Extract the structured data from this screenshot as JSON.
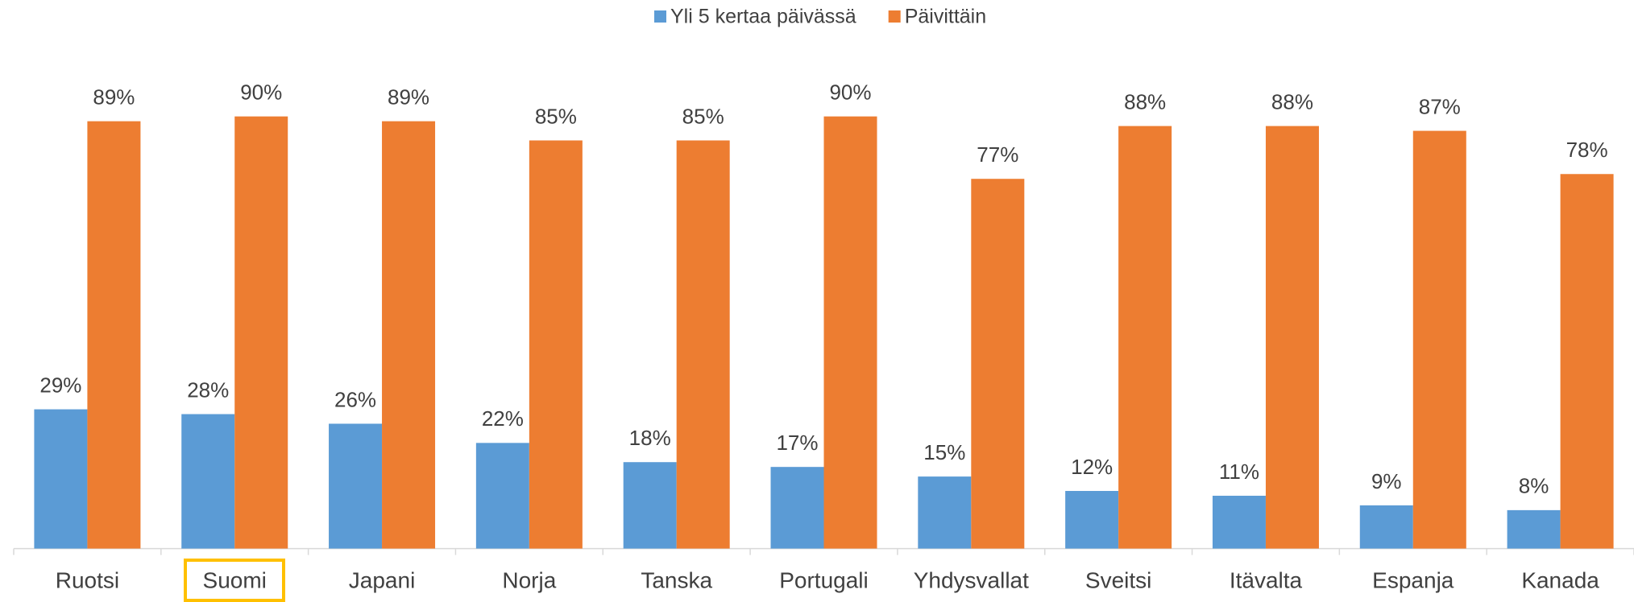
{
  "chart_data": {
    "type": "bar",
    "categories": [
      "Ruotsi",
      "Suomi",
      "Japani",
      "Norja",
      "Tanska",
      "Portugali",
      "Yhdysvallat",
      "Sveitsi",
      "Itävalta",
      "Espanja",
      "Kanada"
    ],
    "series": [
      {
        "name": "Yli 5 kertaa päivässä",
        "color": "#5b9bd5",
        "values": [
          29,
          28,
          26,
          22,
          18,
          17,
          15,
          12,
          11,
          9,
          8
        ],
        "value_labels": [
          "29%",
          "28%",
          "26%",
          "22%",
          "18%",
          "17%",
          "15%",
          "12%",
          "11%",
          "9%",
          "8%"
        ]
      },
      {
        "name": "Päivittäin",
        "color": "#ed7d31",
        "values": [
          89,
          90,
          89,
          85,
          85,
          90,
          77,
          88,
          88,
          87,
          78
        ],
        "value_labels": [
          "89%",
          "90%",
          "89%",
          "85%",
          "85%",
          "90%",
          "77%",
          "88%",
          "88%",
          "87%",
          "78%"
        ]
      }
    ],
    "ylim": [
      0,
      100
    ],
    "legend": "top"
  }
}
